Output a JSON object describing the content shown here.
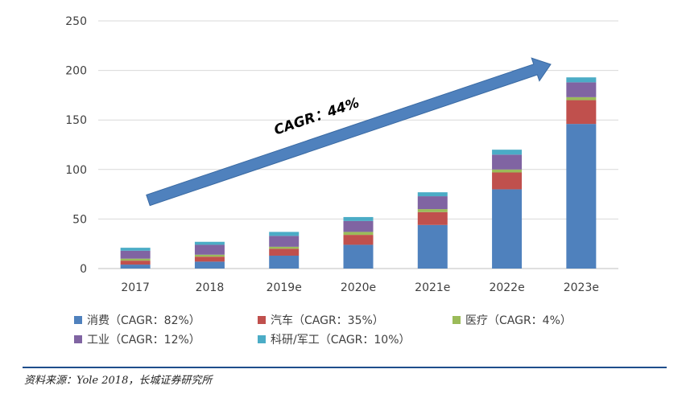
{
  "chart_data": {
    "type": "bar",
    "stacked": true,
    "categories": [
      "2017",
      "2018",
      "2019e",
      "2020e",
      "2021e",
      "2022e",
      "2023e"
    ],
    "series": [
      {
        "name": "消费（CAGR：82%）",
        "color": "#4F81BD",
        "values": [
          4,
          7,
          13,
          24,
          44,
          80,
          146
        ]
      },
      {
        "name": "汽车（CAGR：35%）",
        "color": "#C0504D",
        "values": [
          4,
          5,
          7,
          10,
          13,
          17,
          24
        ]
      },
      {
        "name": "医疗（CAGR：4%）",
        "color": "#9BBB59",
        "values": [
          2,
          2,
          2,
          3,
          3,
          3,
          3
        ]
      },
      {
        "name": "工业（CAGR：12%）",
        "color": "#8064A2",
        "values": [
          8,
          10,
          11,
          11,
          13,
          15,
          15
        ]
      },
      {
        "name": "科研/军工（CAGR：10%）",
        "color": "#4BACC6",
        "values": [
          3,
          3,
          4,
          4,
          4,
          5,
          5
        ]
      }
    ],
    "yticks": [
      0,
      50,
      100,
      150,
      200,
      250
    ],
    "ylim": [
      0,
      250
    ],
    "grid": true,
    "legend_position": "bottom",
    "annotation": {
      "text": "CAGR：44%",
      "type": "arrow",
      "arrow_color": "#4F81BD"
    }
  },
  "source_note": "资料来源：Yole 2018，长城证券研究所"
}
